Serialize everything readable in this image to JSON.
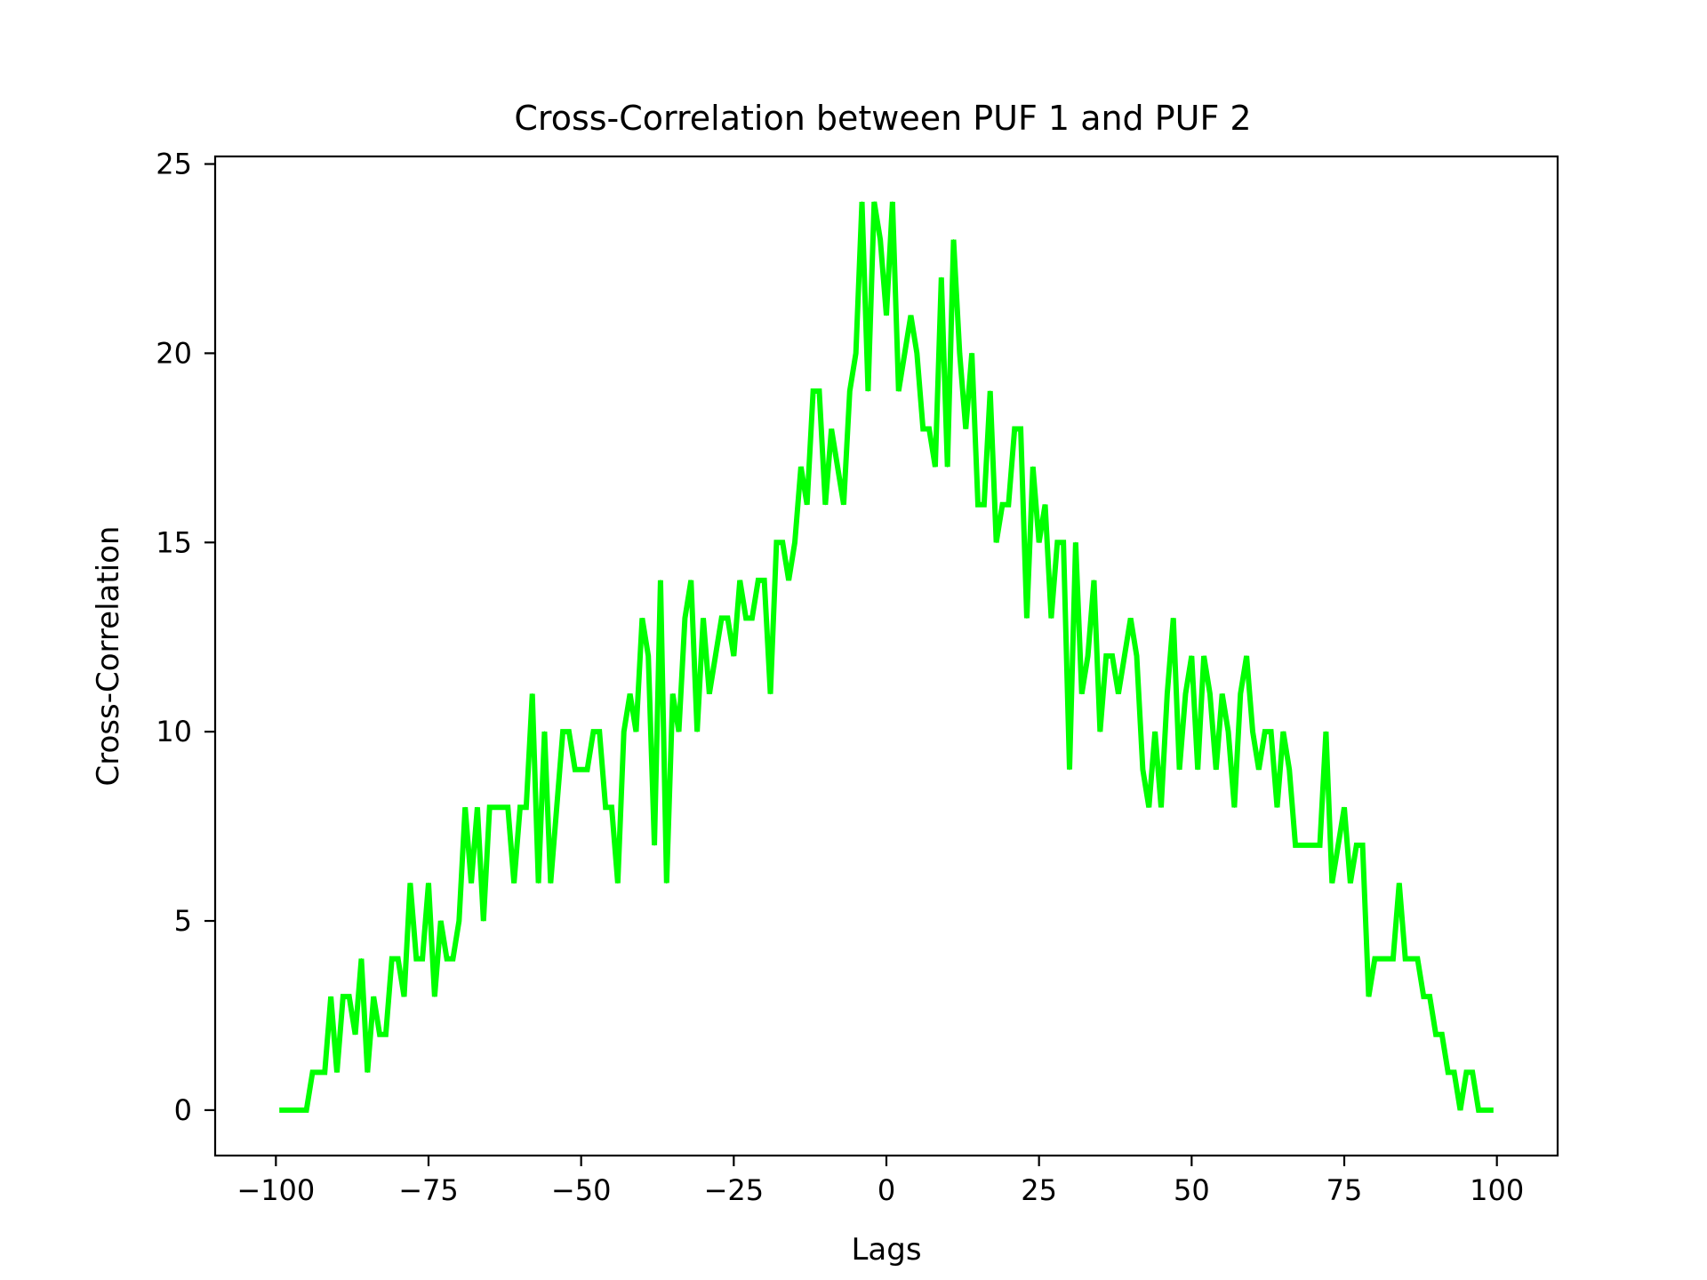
{
  "chart_data": {
    "type": "line",
    "title": "Cross-Correlation between PUF 1 and PUF 2",
    "xlabel": "Lags",
    "ylabel": "Cross-Correlation",
    "xlim": [
      -109.95,
      109.95
    ],
    "ylim": [
      -1.2,
      25.2
    ],
    "xticks": [
      -100,
      -75,
      -50,
      -25,
      0,
      25,
      50,
      75,
      100
    ],
    "xtick_labels": [
      "−100",
      "−75",
      "−50",
      "−25",
      "0",
      "25",
      "50",
      "75",
      "100"
    ],
    "yticks": [
      0,
      5,
      10,
      15,
      20,
      25
    ],
    "ytick_labels": [
      "0",
      "5",
      "10",
      "15",
      "20",
      "25"
    ],
    "grid": false,
    "series": [
      {
        "color": "#00ff00",
        "x_start": -99,
        "x_step": 1,
        "values": [
          0,
          0,
          0,
          0,
          0,
          1,
          1,
          1,
          3,
          1,
          3,
          3,
          2,
          4,
          1,
          3,
          2,
          2,
          4,
          4,
          3,
          6,
          4,
          4,
          6,
          3,
          5,
          4,
          4,
          5,
          8,
          6,
          8,
          5,
          8,
          8,
          8,
          8,
          6,
          8,
          8,
          11,
          6,
          10,
          6,
          8,
          10,
          10,
          9,
          9,
          9,
          10,
          10,
          8,
          8,
          6,
          10,
          11,
          10,
          13,
          12,
          7,
          14,
          6,
          11,
          10,
          13,
          14,
          10,
          13,
          11,
          12,
          13,
          13,
          12,
          14,
          13,
          13,
          14,
          14,
          11,
          15,
          15,
          14,
          15,
          17,
          16,
          19,
          19,
          16,
          18,
          17,
          16,
          19,
          20,
          24,
          19,
          24,
          23,
          21,
          24,
          19,
          20,
          21,
          20,
          18,
          18,
          17,
          22,
          17,
          23,
          20,
          18,
          20,
          16,
          16,
          19,
          15,
          16,
          16,
          18,
          18,
          13,
          17,
          15,
          16,
          13,
          15,
          15,
          9,
          15,
          11,
          12,
          14,
          10,
          12,
          12,
          11,
          12,
          13,
          12,
          9,
          8,
          10,
          8,
          11,
          13,
          9,
          11,
          12,
          9,
          12,
          11,
          9,
          11,
          10,
          8,
          11,
          12,
          10,
          9,
          10,
          10,
          8,
          10,
          9,
          7,
          7,
          7,
          7,
          7,
          10,
          6,
          7,
          8,
          6,
          7,
          7,
          3,
          4,
          4,
          4,
          4,
          6,
          4,
          4,
          4,
          3,
          3,
          2,
          2,
          1,
          1,
          0,
          1,
          1,
          0,
          0,
          0
        ]
      }
    ]
  }
}
